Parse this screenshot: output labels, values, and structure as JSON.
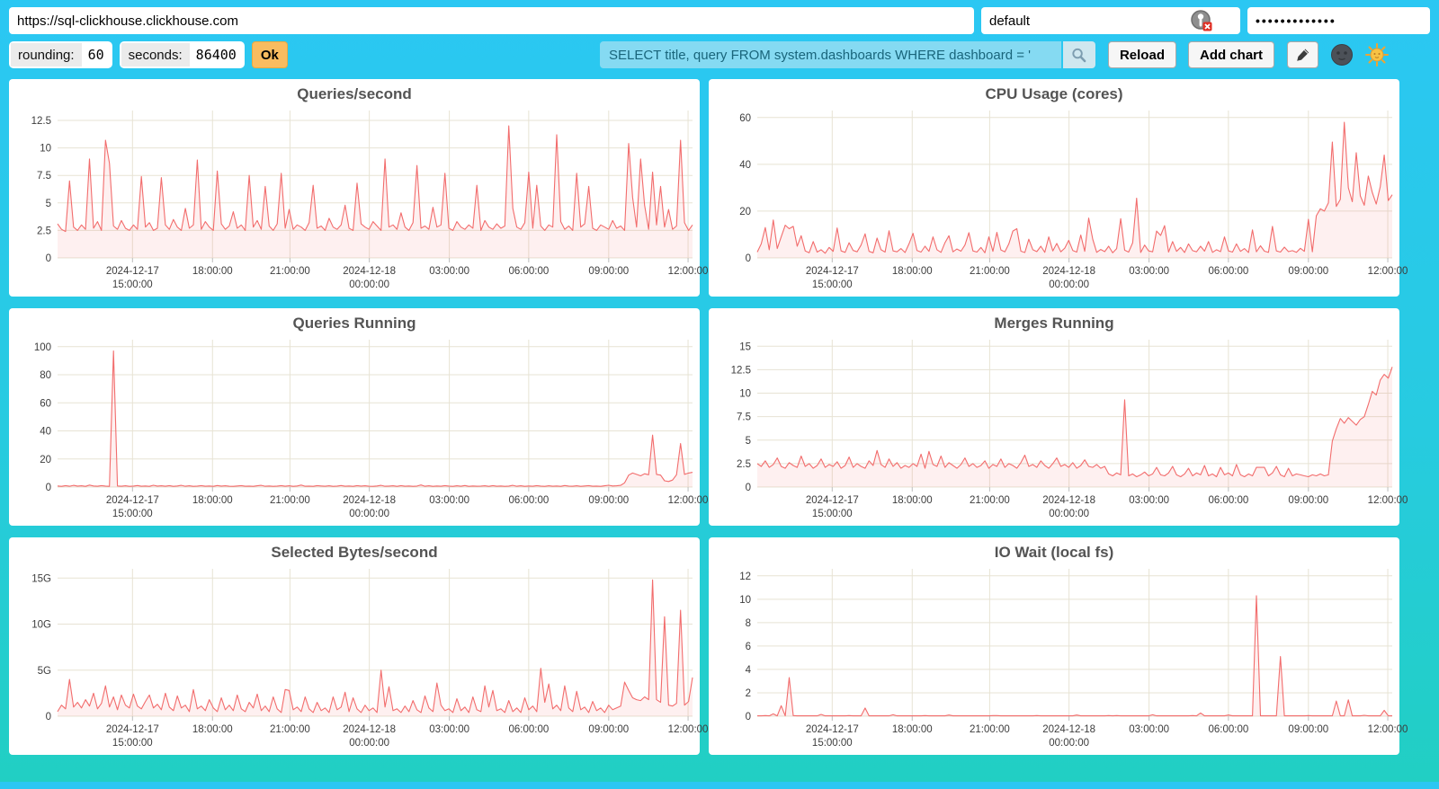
{
  "topbar": {
    "url": "https://sql-clickhouse.clickhouse.com",
    "user": "default",
    "password_masked": "•••••••••••••",
    "rounding_label": "rounding:",
    "rounding_value": "60",
    "seconds_label": "seconds:",
    "seconds_value": "86400",
    "ok_label": "Ok",
    "search_query": "SELECT title, query FROM system.dashboards WHERE dashboard = '",
    "reload_label": "Reload",
    "add_chart_label": "Add chart"
  },
  "icons": {
    "password_manager": "user-circle-with-red-x-badge",
    "search": "magnifier",
    "edit": "pencil",
    "theme_dark": "new-moon-face-emoji",
    "theme_light": "sun-with-face-emoji"
  },
  "colors": {
    "background_top": "#2bc7f3",
    "background_bottom": "#21cfc3",
    "card": "#ffffff",
    "line": "#f26c6c",
    "area": "rgba(242,108,108,0.10)",
    "grid": "#e7e3d4",
    "title": "#545454",
    "axis_text": "#3c3c3c",
    "ok_button": "#f9bc60",
    "search_bg": "#85daf2",
    "search_text": "#19657b"
  },
  "time_axis": {
    "fractions": [
      0.118,
      0.244,
      0.366,
      0.491,
      0.617,
      0.742,
      0.868,
      0.993
    ],
    "labels": [
      [
        "2024-12-17",
        "15:00:00"
      ],
      [
        "18:00:00"
      ],
      [
        "21:00:00"
      ],
      [
        "2024-12-18",
        "00:00:00"
      ],
      [
        "03:00:00"
      ],
      [
        "06:00:00"
      ],
      [
        "09:00:00"
      ],
      [
        "12:00:00"
      ]
    ]
  },
  "chart_data": [
    {
      "type": "line",
      "title": "Queries/second",
      "xlabel": "",
      "ylabel": "",
      "x_axis": "time_axis (24h window 2024-12-17 ~12:10 to 2024-12-18 ~12:10)",
      "ylim": [
        0,
        13.4
      ],
      "yticks": {
        "values": [
          0,
          2.5,
          5,
          7.5,
          10,
          12.5
        ],
        "labels": [
          "0",
          "2.5",
          "5",
          "7.5",
          "10",
          "12.5"
        ]
      },
      "values": [
        3.1,
        2.6,
        2.4,
        7,
        2.8,
        2.5,
        3,
        2.6,
        9,
        2.7,
        3.3,
        2.5,
        10.7,
        8.6,
        2.9,
        2.6,
        3.4,
        2.7,
        2.5,
        3,
        2.6,
        7.4,
        2.8,
        3.2,
        2.5,
        2.7,
        7.3,
        3,
        2.6,
        3.5,
        2.8,
        2.5,
        4.5,
        2.7,
        3,
        8.9,
        2.6,
        3.3,
        2.8,
        2.5,
        7.9,
        3.1,
        2.6,
        2.9,
        4.2,
        2.7,
        3,
        2.5,
        7.5,
        2.8,
        3.4,
        2.6,
        6.5,
        2.9,
        2.5,
        3.1,
        7.7,
        2.7,
        4.4,
        2.6,
        3,
        2.8,
        2.5,
        3.2,
        6.6,
        2.7,
        2.9,
        2.5,
        3.6,
        2.8,
        2.6,
        3,
        4.8,
        2.7,
        2.5,
        6.8,
        3.1,
        2.8,
        2.6,
        3.3,
        2.9,
        2.5,
        9,
        2.8,
        3,
        2.6,
        4.1,
        2.8,
        2.5,
        3.2,
        8.4,
        2.7,
        2.9,
        2.6,
        4.6,
        2.8,
        3,
        7.7,
        2.7,
        2.5,
        3.3,
        2.8,
        2.6,
        3,
        2.7,
        6.6,
        2.5,
        3.4,
        2.8,
        2.6,
        3.1,
        2.7,
        2.9,
        12,
        4.5,
        2.8,
        2.6,
        3.2,
        7.8,
        2.7,
        6.6,
        2.9,
        2.5,
        3,
        2.8,
        11.2,
        3.3,
        2.6,
        2.9,
        2.5,
        7.7,
        2.8,
        3.1,
        6.5,
        2.7,
        2.5,
        3,
        2.8,
        2.6,
        3.4,
        2.7,
        2.9,
        2.5,
        10.4,
        5.5,
        2.8,
        9,
        4.8,
        2.6,
        7.8,
        3,
        6.5,
        2.8,
        4.4,
        2.6,
        2.9,
        10.7,
        3.2,
        2.5,
        3
      ]
    },
    {
      "type": "line",
      "title": "CPU Usage (cores)",
      "xlabel": "",
      "ylabel": "",
      "x_axis": "time_axis",
      "ylim": [
        0,
        63
      ],
      "yticks": {
        "values": [
          0,
          20,
          40,
          60
        ],
        "labels": [
          "0",
          "20",
          "40",
          "60"
        ]
      },
      "values": [
        2.5,
        6,
        13,
        3.5,
        16.2,
        4,
        9,
        14,
        12.5,
        13.5,
        5,
        9.5,
        3,
        2.2,
        7,
        2.5,
        3.5,
        2,
        4.5,
        2.8,
        12.8,
        3,
        2.4,
        6.5,
        3.2,
        2.6,
        5.5,
        10.3,
        2.8,
        2.2,
        8.5,
        3.5,
        2.5,
        11.6,
        3,
        2.6,
        4,
        2.3,
        6,
        10.5,
        3.2,
        2.5,
        5,
        2.8,
        9,
        3.5,
        2.4,
        6.5,
        9.5,
        2.6,
        3.8,
        2.9,
        5.5,
        10.8,
        3,
        2.5,
        4.5,
        2.2,
        9,
        2.8,
        10.9,
        3.4,
        2.6,
        6,
        11.5,
        12.5,
        2.9,
        2.3,
        8,
        3.5,
        2.7,
        5,
        2.4,
        9,
        3,
        6.2,
        2.6,
        4.2,
        7.5,
        3.2,
        2.5,
        9.8,
        2.8,
        17,
        8,
        2.4,
        3.6,
        2.7,
        5,
        2.2,
        4,
        16.8,
        3.3,
        2.5,
        6.5,
        25.5,
        2.3,
        5.5,
        3,
        2.6,
        11.5,
        9.6,
        13.8,
        2.5,
        7,
        2.8,
        4.5,
        2.3,
        6,
        3.1,
        2.6,
        5,
        2.9,
        7,
        2.4,
        3.5,
        2.7,
        9,
        3,
        2.5,
        6,
        2.8,
        4,
        2.3,
        12,
        2.6,
        5.2,
        2.9,
        2.4,
        13.5,
        3,
        2.5,
        4.6,
        2.7,
        3.1,
        2.4,
        4.1,
        2.8,
        16.5,
        2.6,
        18,
        21,
        20,
        23.5,
        49.5,
        22,
        25,
        58,
        30,
        24,
        45,
        26.5,
        22.5,
        35,
        28,
        23,
        30.5,
        44,
        24.5,
        27
      ]
    },
    {
      "type": "line",
      "title": "Queries Running",
      "xlabel": "",
      "ylabel": "",
      "x_axis": "time_axis",
      "ylim": [
        0,
        105
      ],
      "yticks": {
        "values": [
          0,
          20,
          40,
          60,
          80,
          100
        ],
        "labels": [
          "0",
          "20",
          "40",
          "60",
          "80",
          "100"
        ]
      },
      "values": [
        0.8,
        0.5,
        1,
        0.6,
        1.2,
        0.7,
        0.9,
        0.5,
        1.4,
        0.8,
        0.6,
        1,
        0.7,
        0.5,
        97,
        0.8,
        0.6,
        0.9,
        0.5,
        0.7,
        1.1,
        0.6,
        0.8,
        0.5,
        1.3,
        0.7,
        0.9,
        0.6,
        1,
        0.5,
        0.8,
        1.2,
        0.6,
        0.9,
        0.5,
        0.7,
        1,
        0.6,
        0.8,
        0.5,
        1.1,
        0.7,
        0.9,
        0.6,
        0.5,
        0.8,
        1,
        0.6,
        0.7,
        0.5,
        0.9,
        1.2,
        0.6,
        0.8,
        0.5,
        0.7,
        1,
        0.6,
        0.9,
        0.5,
        0.8,
        1.4,
        0.6,
        0.7,
        0.5,
        1,
        0.8,
        0.6,
        0.9,
        0.5,
        0.7,
        1.1,
        0.6,
        0.8,
        0.5,
        1,
        0.7,
        0.9,
        0.6,
        0.5,
        0.8,
        1.2,
        0.6,
        0.7,
        0.9,
        0.5,
        1,
        0.6,
        0.8,
        0.5,
        0.7,
        1.5,
        0.6,
        0.9,
        0.5,
        0.8,
        0.6,
        1,
        0.7,
        0.5,
        0.9,
        0.6,
        1.1,
        0.5,
        0.8,
        0.6,
        0.7,
        0.9,
        0.5,
        1,
        0.6,
        0.8,
        0.5,
        0.7,
        1.2,
        0.6,
        0.9,
        0.5,
        0.8,
        0.6,
        1,
        0.7,
        0.5,
        0.9,
        0.6,
        0.8,
        0.5,
        1.1,
        0.7,
        0.6,
        0.9,
        0.5,
        0.8,
        1,
        0.6,
        0.7,
        0.5,
        0.9,
        1.3,
        0.8,
        0.9,
        1.2,
        3,
        8.5,
        10,
        9,
        8,
        9.5,
        8.8,
        37,
        9,
        8.5,
        4.5,
        4,
        5,
        8.8,
        31,
        9,
        10,
        10.5
      ]
    },
    {
      "type": "line",
      "title": "Merges Running",
      "xlabel": "",
      "ylabel": "",
      "x_axis": "time_axis",
      "ylim": [
        0,
        15.7
      ],
      "yticks": {
        "values": [
          0,
          2.5,
          5,
          7.5,
          10,
          12.5,
          15
        ],
        "labels": [
          "0",
          "2.5",
          "5",
          "7.5",
          "10",
          "12.5",
          "15"
        ]
      },
      "values": [
        2.5,
        2.2,
        2.8,
        2.1,
        2.4,
        3.1,
        2.2,
        2,
        2.6,
        2.3,
        2.1,
        3.3,
        2.2,
        2.5,
        2,
        2.3,
        3,
        2.1,
        2.4,
        2.2,
        2.7,
        2,
        2.3,
        3.2,
        2.1,
        2.5,
        2.2,
        2,
        2.8,
        2.3,
        3.9,
        2.4,
        2.1,
        3,
        2.2,
        2.6,
        2,
        2.3,
        2.1,
        2.5,
        2.2,
        3.5,
        2,
        3.8,
        2.4,
        2.2,
        3.3,
        2.1,
        2.6,
        2.3,
        2,
        2.4,
        3.1,
        2.2,
        2.5,
        2.1,
        2.3,
        2.8,
        2,
        2.4,
        2.2,
        3,
        2.1,
        2.5,
        2.3,
        2,
        2.6,
        3.4,
        2.2,
        2.4,
        2.1,
        2.8,
        2.3,
        2,
        2.5,
        3.1,
        2.2,
        2.4,
        2.1,
        2.6,
        2,
        2.3,
        2.9,
        2.2,
        2.1,
        2.4,
        2,
        2.2,
        1.4,
        1.2,
        1.5,
        1.3,
        9.3,
        1.2,
        1.4,
        1.1,
        1.3,
        1.6,
        1.2,
        1.4,
        2.1,
        1.3,
        1.2,
        1.5,
        2.2,
        1.3,
        1.1,
        1.4,
        2,
        1.2,
        1.5,
        1.3,
        2.3,
        1.2,
        1.4,
        1.1,
        2.1,
        1.3,
        1.5,
        1.2,
        2.4,
        1.3,
        1.1,
        1.4,
        1.2,
        2.1,
        2.1,
        2.1,
        1.2,
        1.5,
        2.2,
        1.3,
        1.1,
        2,
        1.2,
        1.4,
        1.3,
        1.2,
        1.1,
        1.3,
        1.2,
        1.4,
        1.2,
        1.3,
        4.9,
        6.2,
        7.3,
        6.8,
        7.4,
        7,
        6.6,
        7.2,
        7.5,
        8.8,
        10.2,
        9.8,
        11.4,
        12,
        11.6,
        12.8
      ]
    },
    {
      "type": "line",
      "title": "Selected Bytes/second",
      "xlabel": "",
      "ylabel": "",
      "x_axis": "time_axis",
      "unit": "G (gigabytes/second)",
      "ylim": [
        0,
        16
      ],
      "yticks": {
        "values": [
          0,
          5,
          10,
          15
        ],
        "labels": [
          "0",
          "5G",
          "10G",
          "15G"
        ]
      },
      "values": [
        0.5,
        1.2,
        0.8,
        4,
        1,
        1.5,
        0.9,
        1.8,
        1.1,
        2.5,
        0.8,
        1.4,
        3.3,
        1,
        2.1,
        0.7,
        2.3,
        1.2,
        0.9,
        2.4,
        1.1,
        0.8,
        1.6,
        2.3,
        0.9,
        1.3,
        0.7,
        2.5,
        1,
        0.6,
        2.2,
        0.9,
        1.2,
        0.5,
        2.9,
        0.8,
        1.1,
        0.6,
        1.8,
        0.9,
        0.5,
        2,
        0.7,
        1.2,
        0.6,
        2.3,
        0.8,
        0.5,
        1.5,
        0.9,
        2.4,
        0.6,
        1.1,
        0.5,
        2.1,
        0.8,
        0.4,
        2.9,
        2.8,
        0.7,
        1,
        0.5,
        2.1,
        0.8,
        0.4,
        1.5,
        0.6,
        0.9,
        0.4,
        2.1,
        0.7,
        1,
        2.6,
        0.5,
        2,
        0.8,
        0.4,
        1.2,
        0.6,
        0.9,
        0.4,
        5,
        1,
        3.2,
        0.6,
        0.8,
        0.4,
        1.1,
        0.5,
        1.7,
        0.7,
        0.4,
        2.2,
        0.9,
        0.5,
        3.6,
        1.2,
        0.6,
        0.8,
        0.4,
        1.9,
        0.6,
        1,
        0.4,
        2.1,
        0.7,
        0.5,
        3.3,
        1,
        2.8,
        0.6,
        0.8,
        0.4,
        1.7,
        0.5,
        0.9,
        0.4,
        2,
        0.7,
        1.1,
        0.5,
        5.2,
        1.5,
        3.5,
        0.8,
        1.2,
        0.6,
        3.3,
        0.9,
        0.5,
        2.7,
        0.7,
        1,
        0.4,
        1.6,
        0.6,
        0.9,
        0.4,
        1.2,
        0.7,
        0.9,
        1.1,
        3.7,
        2.8,
        2,
        1.8,
        1.7,
        2.1,
        1.8,
        14.8,
        1.8,
        1.5,
        10.8,
        1.2,
        1.1,
        1.4,
        11.5,
        1.2,
        1.6,
        4.2
      ]
    },
    {
      "type": "line",
      "title": "IO Wait (local fs)",
      "xlabel": "",
      "ylabel": "",
      "x_axis": "time_axis",
      "ylim": [
        0,
        12.6
      ],
      "yticks": {
        "values": [
          0,
          2,
          4,
          6,
          8,
          10,
          12
        ],
        "labels": [
          "0",
          "2",
          "4",
          "6",
          "8",
          "10",
          "12"
        ]
      },
      "values": [
        0.03,
        0.03,
        0.05,
        0.03,
        0.2,
        0.03,
        0.9,
        0.03,
        3.3,
        0.05,
        0.03,
        0.03,
        0.04,
        0.03,
        0.03,
        0.03,
        0.15,
        0.03,
        0.03,
        0.04,
        0.03,
        0.03,
        0.03,
        0.05,
        0.03,
        0.03,
        0.03,
        0.7,
        0.03,
        0.04,
        0.03,
        0.03,
        0.03,
        0.03,
        0.12,
        0.03,
        0.03,
        0.04,
        0.03,
        0.03,
        0.03,
        0.03,
        0.05,
        0.03,
        0.03,
        0.03,
        0.04,
        0.03,
        0.1,
        0.03,
        0.03,
        0.03,
        0.03,
        0.04,
        0.03,
        0.03,
        0.03,
        0.03,
        0.03,
        0.05,
        0.05,
        0.03,
        0.03,
        0.03,
        0.04,
        0.03,
        0.03,
        0.03,
        0.03,
        0.03,
        0.05,
        0.03,
        0.03,
        0.04,
        0.03,
        0.03,
        0.03,
        0.03,
        0.03,
        0.03,
        0.1,
        0.03,
        0.03,
        0.04,
        0.03,
        0.03,
        0.03,
        0.03,
        0.05,
        0.03,
        0.05,
        0.03,
        0.03,
        0.03,
        0.04,
        0.03,
        0.03,
        0.03,
        0.03,
        0.12,
        0.03,
        0.03,
        0.03,
        0.04,
        0.03,
        0.03,
        0.03,
        0.03,
        0.03,
        0.05,
        0.03,
        0.28,
        0.03,
        0.03,
        0.04,
        0.03,
        0.03,
        0.03,
        0.1,
        0.03,
        0.03,
        0.03,
        0.04,
        0.03,
        0.03,
        10.3,
        0.03,
        0.03,
        0.04,
        0.03,
        0.03,
        5.1,
        0.03,
        0.03,
        0.03,
        0.04,
        0.03,
        0.03,
        0.05,
        0.03,
        0.03,
        0.03,
        0.04,
        0.03,
        0.03,
        1.3,
        0.03,
        0.03,
        1.4,
        0.03,
        0.03,
        0.03,
        0.08,
        0.03,
        0.03,
        0.03,
        0.03,
        0.5,
        0.03,
        0.03
      ]
    }
  ]
}
